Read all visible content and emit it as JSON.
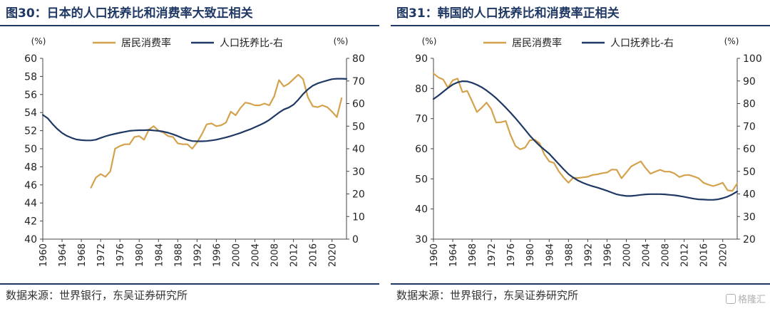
{
  "figures": [
    {
      "title": "图30：日本的人口抚养比和消费率大致正相关",
      "source": "数据来源：世界银行，东吴证券研究所",
      "chart_data": {
        "type": "line",
        "left_unit": "(%)",
        "right_unit": "(%)",
        "x": [
          1960,
          1961,
          1962,
          1963,
          1964,
          1965,
          1966,
          1967,
          1968,
          1969,
          1970,
          1971,
          1972,
          1973,
          1974,
          1975,
          1976,
          1977,
          1978,
          1979,
          1980,
          1981,
          1982,
          1983,
          1984,
          1985,
          1986,
          1987,
          1988,
          1989,
          1990,
          1991,
          1992,
          1993,
          1994,
          1995,
          1996,
          1997,
          1998,
          1999,
          2000,
          2001,
          2002,
          2003,
          2004,
          2005,
          2006,
          2007,
          2008,
          2009,
          2010,
          2011,
          2012,
          2013,
          2014,
          2015,
          2016,
          2017,
          2018,
          2019,
          2020,
          2021,
          2022,
          2023
        ],
        "xticks": [
          "1960",
          "1964",
          "1968",
          "1972",
          "1976",
          "1980",
          "1984",
          "1988",
          "1992",
          "1996",
          "2000",
          "2004",
          "2008",
          "2012",
          "2016",
          "2020"
        ],
        "xlim": [
          1960,
          2023
        ],
        "ylim_left": [
          40,
          60
        ],
        "yticks_left": [
          "40",
          "42",
          "44",
          "46",
          "48",
          "50",
          "52",
          "54",
          "56",
          "58",
          "60"
        ],
        "ylim_right": [
          0,
          80
        ],
        "yticks_right": [
          "0",
          "10",
          "20",
          "30",
          "40",
          "50",
          "60",
          "70",
          "80"
        ],
        "legend_position": "top-center",
        "series": [
          {
            "name": "居民消费率",
            "axis": "left",
            "color": "#d4a24c",
            "values": [
              null,
              null,
              null,
              null,
              null,
              null,
              null,
              null,
              null,
              null,
              45.7,
              46.8,
              47.2,
              46.9,
              47.5,
              50.0,
              50.3,
              50.5,
              50.5,
              51.3,
              51.4,
              51.0,
              52.1,
              52.5,
              52.0,
              51.8,
              51.4,
              51.3,
              50.6,
              50.5,
              50.5,
              50.0,
              50.7,
              51.6,
              52.7,
              52.8,
              52.5,
              52.6,
              52.9,
              54.1,
              53.7,
              54.5,
              55.1,
              55.0,
              54.8,
              54.8,
              55.0,
              54.8,
              55.8,
              57.6,
              56.9,
              57.2,
              57.7,
              58.2,
              57.7,
              55.7,
              54.7,
              54.6,
              54.8,
              54.6,
              54.1,
              53.5,
              55.6,
              null
            ]
          },
          {
            "name": "人口抚养比-右",
            "axis": "right",
            "color": "#1f3864",
            "values": [
              55.0,
              53.5,
              51.0,
              48.8,
              47.0,
              45.7,
              44.8,
              44.1,
              43.8,
              43.7,
              43.7,
              44.0,
              44.8,
              45.5,
              46.1,
              46.6,
              47.1,
              47.5,
              47.9,
              48.1,
              48.2,
              48.2,
              48.3,
              48.1,
              47.9,
              47.6,
              47.1,
              46.4,
              45.6,
              44.7,
              43.9,
              43.4,
              43.3,
              43.3,
              43.4,
              43.7,
              44.0,
              44.5,
              45.0,
              45.6,
              46.3,
              47.0,
              47.8,
              48.6,
              49.5,
              50.5,
              51.5,
              52.8,
              54.4,
              56.0,
              57.4,
              58.2,
              59.5,
              61.7,
              64.2,
              66.3,
              67.9,
              68.9,
              69.6,
              70.2,
              70.8,
              71.0,
              71.0,
              70.9
            ]
          }
        ]
      }
    },
    {
      "title": "图31：韩国的人口抚养比和消费率正相关",
      "source": "数据来源：世界银行，东吴证券研究所",
      "watermark": "格隆汇",
      "chart_data": {
        "type": "line",
        "left_unit": "(%)",
        "right_unit": "(%)",
        "x": [
          1960,
          1961,
          1962,
          1963,
          1964,
          1965,
          1966,
          1967,
          1968,
          1969,
          1970,
          1971,
          1972,
          1973,
          1974,
          1975,
          1976,
          1977,
          1978,
          1979,
          1980,
          1981,
          1982,
          1983,
          1984,
          1985,
          1986,
          1987,
          1988,
          1989,
          1990,
          1991,
          1992,
          1993,
          1994,
          1995,
          1996,
          1997,
          1998,
          1999,
          2000,
          2001,
          2002,
          2003,
          2004,
          2005,
          2006,
          2007,
          2008,
          2009,
          2010,
          2011,
          2012,
          2013,
          2014,
          2015,
          2016,
          2017,
          2018,
          2019,
          2020,
          2021,
          2022,
          2023
        ],
        "xticks": [
          "1960",
          "1964",
          "1968",
          "1972",
          "1976",
          "1980",
          "1984",
          "1988",
          "1992",
          "1996",
          "2000",
          "2004",
          "2008",
          "2012",
          "2016",
          "2020"
        ],
        "xlim": [
          1960,
          2023
        ],
        "ylim_left": [
          30,
          90
        ],
        "yticks_left": [
          "30",
          "40",
          "50",
          "60",
          "70",
          "80",
          "90"
        ],
        "ylim_right": [
          20,
          100
        ],
        "yticks_right": [
          "20",
          "30",
          "40",
          "50",
          "60",
          "70",
          "80",
          "90",
          "100"
        ],
        "legend_position": "top-center",
        "series": [
          {
            "name": "居民消费率",
            "axis": "left",
            "color": "#d4a24c",
            "values": [
              85.0,
              83.7,
              83.0,
              80.3,
              82.7,
              83.3,
              78.8,
              79.2,
              75.8,
              72.2,
              73.6,
              75.3,
              73.1,
              68.7,
              68.8,
              69.2,
              64.5,
              60.9,
              59.8,
              60.4,
              62.8,
              63.0,
              61.8,
              58.1,
              55.8,
              55.3,
              52.5,
              50.4,
              48.7,
              50.4,
              50.3,
              50.5,
              50.7,
              51.3,
              51.5,
              51.9,
              52.1,
              53.1,
              53.0,
              50.2,
              52.1,
              54.1,
              55.0,
              55.8,
              53.6,
              51.7,
              52.4,
              53.0,
              52.4,
              52.4,
              51.8,
              50.6,
              51.2,
              51.3,
              50.8,
              50.2,
              48.7,
              48.1,
              47.6,
              48.1,
              48.7,
              46.2,
              46.0,
              48.5
            ]
          },
          {
            "name": "人口抚养比-右",
            "axis": "right",
            "color": "#1f3864",
            "values": [
              82.0,
              83.5,
              85.2,
              86.9,
              88.4,
              89.4,
              89.9,
              89.8,
              89.2,
              88.3,
              87.2,
              85.8,
              84.2,
              82.4,
              80.3,
              78.2,
              75.9,
              73.5,
              71.0,
              68.4,
              65.8,
              63.5,
              61.4,
              59.6,
              57.8,
              55.5,
              53.2,
              50.9,
              48.8,
              47.2,
              45.9,
              44.9,
              44.1,
              43.4,
              42.8,
              42.1,
              41.4,
              40.6,
              39.8,
              39.4,
              39.1,
              39.1,
              39.3,
              39.6,
              39.8,
              39.9,
              39.9,
              39.9,
              39.8,
              39.6,
              39.4,
              39.1,
              38.7,
              38.3,
              37.9,
              37.6,
              37.5,
              37.4,
              37.4,
              37.6,
              38.1,
              38.8,
              39.8,
              41.1
            ]
          }
        ]
      }
    }
  ]
}
